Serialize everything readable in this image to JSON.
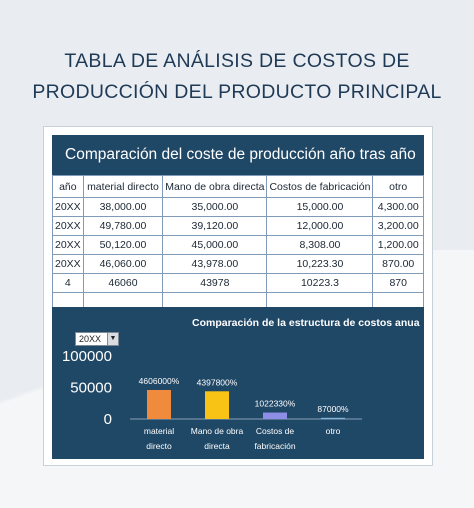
{
  "page": {
    "title_line1": "TABLA DE ANÁLISIS DE COSTOS DE",
    "title_line2": "PRODUCCIÓN DEL PRODUCTO PRINCIPAL"
  },
  "banner": {
    "text": "Comparación del coste de producción año tras año"
  },
  "table": {
    "headers": [
      "año",
      "material directo",
      "Mano de obra directa",
      "Costos de fabricación",
      "otro"
    ],
    "rows": [
      [
        "20XX",
        "38,000.00",
        "35,000.00",
        "15,000.00",
        "4,300.00"
      ],
      [
        "20XX",
        "49,780.00",
        "39,120.00",
        "12,000.00",
        "3,200.00"
      ],
      [
        "20XX",
        "50,120.00",
        "45,000.00",
        "8,308.00",
        "1,200.00"
      ],
      [
        "20XX",
        "46,060.00",
        "43,978.00",
        "10,223.30",
        "870.00"
      ],
      [
        "4",
        "46060",
        "43978",
        "10223.3",
        "870"
      ],
      [
        "",
        "",
        "",
        "",
        ""
      ]
    ]
  },
  "chart": {
    "title": "Comparación de la estructura de costos anua",
    "selector_value": "20XX",
    "selector_arrow": "▼"
  },
  "chart_data": {
    "type": "bar",
    "categories": [
      [
        "material",
        "directo"
      ],
      [
        "Mano de obra",
        "directa"
      ],
      [
        "Costos de",
        "fabricación"
      ],
      [
        "otro"
      ]
    ],
    "values": [
      46060,
      43978,
      10223.3,
      870
    ],
    "data_labels": [
      "4606000%",
      "4397800%",
      "1022330%",
      "87000%"
    ],
    "colors": [
      "#f08a3c",
      "#f9c316",
      "#8e8ee6",
      "#7fb7d9"
    ],
    "y_ticks": [
      "100000",
      "50000",
      "0"
    ],
    "ylim": [
      0,
      100000
    ]
  }
}
